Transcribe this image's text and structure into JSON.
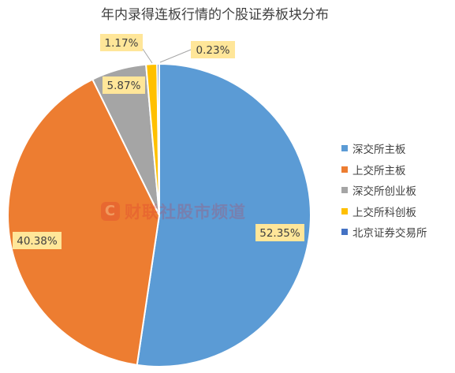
{
  "chart_data": {
    "type": "pie",
    "title": "年内录得连板行情的个股证券板块分布",
    "slices": [
      {
        "name": "深交所主板",
        "value": 52.35,
        "label": "52.35%",
        "color": "#5b9bd5"
      },
      {
        "name": "上交所主板",
        "value": 40.38,
        "label": "40.38%",
        "color": "#ed7d31"
      },
      {
        "name": "深交所创业板",
        "value": 5.87,
        "label": "5.87%",
        "color": "#a5a5a5"
      },
      {
        "name": "上交所科创板",
        "value": 1.17,
        "label": "1.17%",
        "color": "#ffc000"
      },
      {
        "name": "北京证券交易所",
        "value": 0.23,
        "label": "0.23%",
        "color": "#4472c4"
      }
    ],
    "legend_position": "right"
  },
  "watermark": {
    "logo_letter": "C",
    "text": "财联社股市频道"
  }
}
